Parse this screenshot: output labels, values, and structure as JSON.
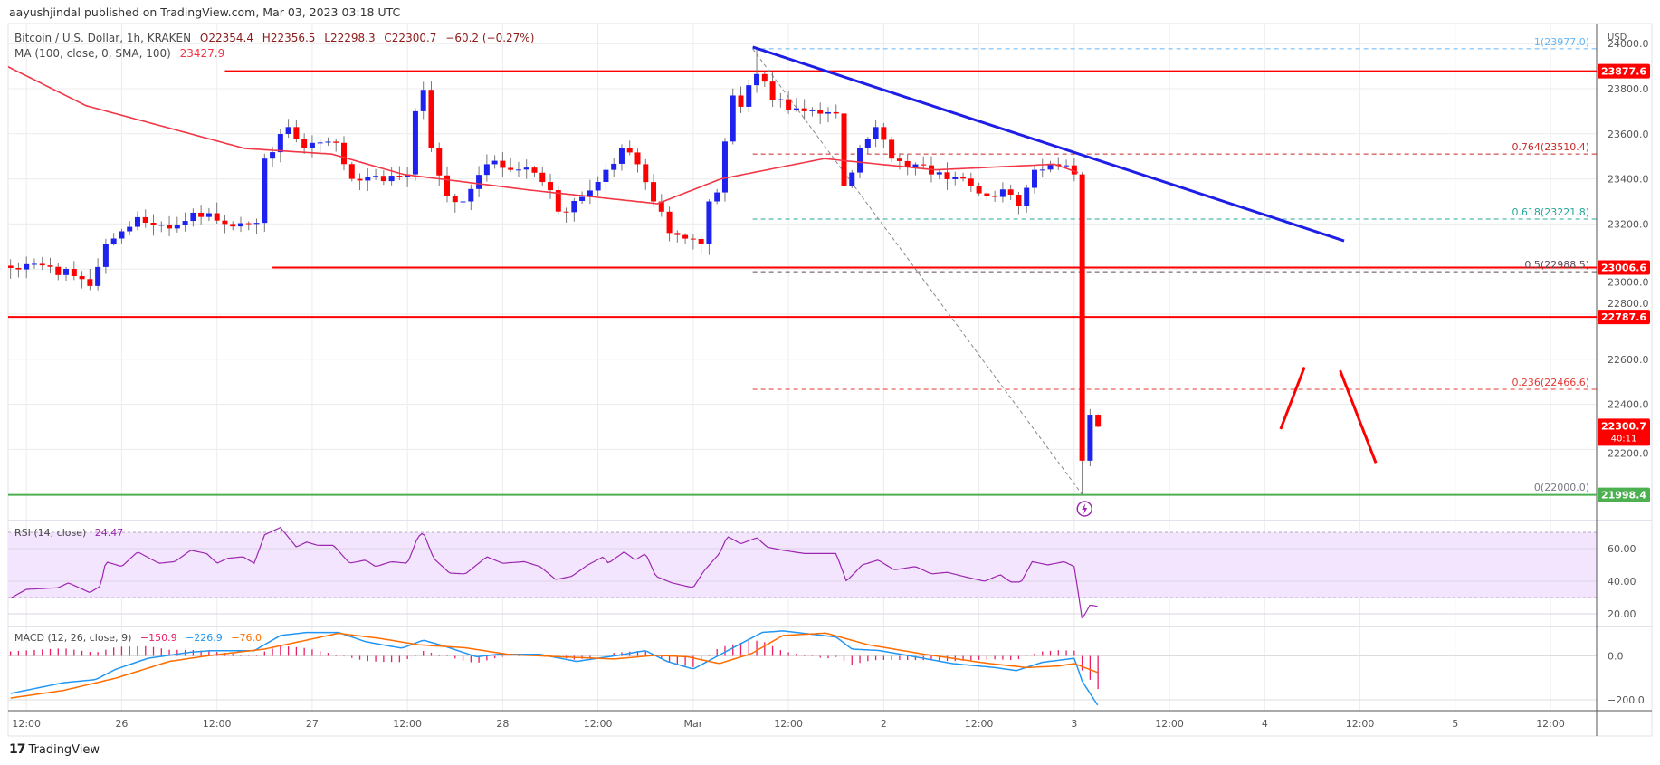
{
  "header": {
    "published": "aayushjindal published on TradingView.com, Mar 03, 2023 03:18 UTC"
  },
  "legend": {
    "symbol": "Bitcoin / U.S. Dollar, 1h, KRAKEN",
    "open": "O22354.4",
    "high": "H22356.5",
    "low": "L22298.3",
    "close": "C22300.7",
    "change": "−60.2 (−0.27%)",
    "ma_label": "MA (100, close, 0, SMA, 100)",
    "ma_value": "23427.9",
    "rsi_label": "RSI (14, close)",
    "rsi_value": "24.47",
    "macd_label": "MACD (12, 26, close, 9)",
    "macd_hist": "−150.9",
    "macd_line": "−226.9",
    "macd_signal": "−76.0"
  },
  "axis": {
    "currency": "USD",
    "price_ticks": [
      "24000.0",
      "23800.0",
      "23600.0",
      "23400.0",
      "23200.0",
      "23000.0",
      "22800.0",
      "22600.0",
      "22400.0",
      "22200.0"
    ],
    "price_tick_values": [
      24000,
      23800,
      23600,
      23400,
      23200,
      23000,
      22800,
      22600,
      22400,
      22200
    ],
    "rsi_ticks": [
      "60.00",
      "40.00",
      "20.00"
    ],
    "rsi_tick_values": [
      60,
      40,
      20
    ],
    "macd_ticks": [
      "0.0",
      "−200.0"
    ],
    "macd_tick_values": [
      0,
      -200
    ],
    "time_labels": [
      "12:00",
      "26",
      "12:00",
      "27",
      "12:00",
      "28",
      "12:00",
      "Mar",
      "12:00",
      "2",
      "12:00",
      "3",
      "12:00",
      "4",
      "12:00",
      "5",
      "12:00"
    ],
    "time_label_hours": [
      2,
      14,
      26,
      38,
      50,
      62,
      74,
      86,
      98,
      110,
      122,
      134,
      146,
      158,
      170,
      182,
      194
    ],
    "price_badges": [
      {
        "text": "23877.6",
        "value": 23877.6,
        "color": "#ff0000"
      },
      {
        "text": "23006.6",
        "value": 23006.6,
        "color": "#ff0000"
      },
      {
        "text": "22787.6",
        "value": 22787.6,
        "color": "#ff0000"
      },
      {
        "text": "22300.7",
        "sub": "40:11",
        "value": 22300.7,
        "color": "#ff0000"
      },
      {
        "text": "21998.4",
        "value": 21998.4,
        "color": "#4caf50"
      }
    ]
  },
  "chart_data": {
    "type": "candlestick",
    "title": "Bitcoin / U.S. Dollar, 1h, KRAKEN",
    "x_unit": "hours since Feb 25 10:00 UTC",
    "ylim": [
      21850,
      24050
    ],
    "close_anchors": [
      [
        0,
        23005
      ],
      [
        5,
        23010
      ],
      [
        10,
        22925
      ],
      [
        12,
        23113
      ],
      [
        16,
        23230
      ],
      [
        20,
        23180
      ],
      [
        23,
        23250
      ],
      [
        27,
        23200
      ],
      [
        31,
        23205
      ],
      [
        32,
        23490
      ],
      [
        35,
        23630
      ],
      [
        37,
        23535
      ],
      [
        41,
        23560
      ],
      [
        43,
        23400
      ],
      [
        47,
        23390
      ],
      [
        50,
        23420
      ],
      [
        51,
        23700
      ],
      [
        52,
        23795
      ],
      [
        53,
        23535
      ],
      [
        55,
        23325
      ],
      [
        57,
        23300
      ],
      [
        60,
        23465
      ],
      [
        63,
        23440
      ],
      [
        65,
        23450
      ],
      [
        68,
        23350
      ],
      [
        69,
        23255
      ],
      [
        72,
        23320
      ],
      [
        75,
        23440
      ],
      [
        77,
        23535
      ],
      [
        79,
        23465
      ],
      [
        81,
        23300
      ],
      [
        83,
        23160
      ],
      [
        85,
        23135
      ],
      [
        87,
        23110
      ],
      [
        88,
        23300
      ],
      [
        89,
        23340
      ],
      [
        91,
        23770
      ],
      [
        92,
        23720
      ],
      [
        94,
        23865
      ],
      [
        96,
        23750
      ],
      [
        100,
        23700
      ],
      [
        104,
        23690
      ],
      [
        105,
        23370
      ],
      [
        107,
        23535
      ],
      [
        109,
        23630
      ],
      [
        111,
        23490
      ],
      [
        115,
        23460
      ],
      [
        116,
        23420
      ],
      [
        119,
        23410
      ],
      [
        121,
        23370
      ],
      [
        123,
        23325
      ],
      [
        126,
        23330
      ],
      [
        127,
        23280
      ],
      [
        129,
        23440
      ],
      [
        131,
        23465
      ],
      [
        133,
        23460
      ],
      [
        134,
        23420
      ],
      [
        135,
        22150
      ],
      [
        136,
        22354
      ],
      [
        137,
        22300.7
      ]
    ],
    "extremes": {
      "high": {
        "hour": 94,
        "price": 23977
      },
      "low": {
        "hour": 135,
        "price": 22000
      }
    },
    "ma_anchors": [
      [
        0,
        23936
      ],
      [
        12,
        23725
      ],
      [
        32,
        23535
      ],
      [
        43,
        23510
      ],
      [
        52,
        23420
      ],
      [
        68,
        23350
      ],
      [
        84,
        23290
      ],
      [
        92,
        23400
      ],
      [
        105,
        23490
      ],
      [
        119,
        23440
      ],
      [
        134,
        23465
      ],
      [
        137,
        23428
      ]
    ],
    "levels": [
      {
        "name": "resistance-1",
        "value": 23877.6,
        "from_hour": 27,
        "color": "#ff0000"
      },
      {
        "name": "resistance-2",
        "value": 23006.6,
        "from_hour": 33,
        "color": "#ff0000"
      },
      {
        "name": "resistance-3",
        "value": 22787.6,
        "from_hour": -3,
        "color": "#ff0000"
      },
      {
        "name": "support",
        "value": 21998.4,
        "from_hour": -3,
        "color": "#4caf50"
      }
    ],
    "fib": [
      {
        "label": "1(23977.0)",
        "value": 23977.0,
        "color": "#64b5f6"
      },
      {
        "label": "0.764(23510.4)",
        "value": 23510.4,
        "color": "#c62828"
      },
      {
        "label": "0.618(23221.8)",
        "value": 23221.8,
        "color": "#26a69a"
      },
      {
        "label": "0.5(22988.5)",
        "value": 22988.5,
        "color": "#5d4a5a"
      },
      {
        "label": "0.236(22466.6)",
        "value": 22466.6,
        "color": "#e53935"
      },
      {
        "label": "0(22000.0)",
        "value": 22000.0,
        "color": "#787b86"
      }
    ],
    "fib_from_hour": 93.5,
    "trendline": {
      "from": [
        93.5,
        23985
      ],
      "to": [
        168,
        23125
      ],
      "color": "#1e1ee6"
    },
    "arrows": [
      {
        "from": [
          160,
          22290
        ],
        "to": [
          163,
          22565
        ],
        "color": "#ff0000"
      },
      {
        "from": [
          167.5,
          22550
        ],
        "to": [
          172,
          22140
        ],
        "color": "#ff0000"
      }
    ],
    "rsi_anchors": [
      [
        0,
        29.6
      ],
      [
        2,
        35
      ],
      [
        6,
        36
      ],
      [
        7.3,
        39
      ],
      [
        10,
        33
      ],
      [
        11.3,
        37
      ],
      [
        12,
        52
      ],
      [
        14,
        49
      ],
      [
        16,
        58
      ],
      [
        18.7,
        51
      ],
      [
        20.7,
        52
      ],
      [
        22.7,
        59
      ],
      [
        24.7,
        57
      ],
      [
        26,
        51
      ],
      [
        27.3,
        54
      ],
      [
        29.3,
        55
      ],
      [
        30.7,
        51
      ],
      [
        32,
        68.5
      ],
      [
        34,
        73
      ],
      [
        36,
        61
      ],
      [
        37.3,
        64
      ],
      [
        38.7,
        62
      ],
      [
        40.7,
        62
      ],
      [
        42.7,
        51
      ],
      [
        44.7,
        53
      ],
      [
        46,
        49
      ],
      [
        48,
        52
      ],
      [
        50,
        51
      ],
      [
        51.3,
        67
      ],
      [
        52,
        70
      ],
      [
        53.3,
        54
      ],
      [
        55.3,
        45
      ],
      [
        57.3,
        44.5
      ],
      [
        60,
        55
      ],
      [
        62,
        51
      ],
      [
        64.7,
        52
      ],
      [
        66.7,
        49
      ],
      [
        68.7,
        41
      ],
      [
        70.7,
        43
      ],
      [
        72.7,
        50
      ],
      [
        74.7,
        55
      ],
      [
        75.3,
        51
      ],
      [
        77.3,
        58
      ],
      [
        78.7,
        53
      ],
      [
        80,
        57
      ],
      [
        81.3,
        43
      ],
      [
        83.3,
        39
      ],
      [
        86,
        36
      ],
      [
        87.3,
        46
      ],
      [
        89.3,
        57
      ],
      [
        90.3,
        67.5
      ],
      [
        92,
        63
      ],
      [
        94,
        66.7
      ],
      [
        95.3,
        61
      ],
      [
        97.3,
        59
      ],
      [
        100,
        57
      ],
      [
        104,
        57
      ],
      [
        105.3,
        40
      ],
      [
        107.3,
        50
      ],
      [
        109.3,
        53
      ],
      [
        111.3,
        47
      ],
      [
        114,
        49
      ],
      [
        116,
        44.5
      ],
      [
        118,
        45.5
      ],
      [
        120,
        43
      ],
      [
        122.7,
        40
      ],
      [
        124.7,
        44
      ],
      [
        126,
        39.5
      ],
      [
        127.3,
        39.5
      ],
      [
        128.7,
        52
      ],
      [
        130.7,
        50
      ],
      [
        132.7,
        52
      ],
      [
        134,
        49
      ],
      [
        135,
        16.7
      ],
      [
        136,
        25.5
      ],
      [
        137,
        24.47
      ]
    ],
    "rsi_bands": [
      70,
      30
    ],
    "macd_anchors": [
      [
        0,
        -171
      ],
      [
        6.7,
        -122
      ],
      [
        10.7,
        -108
      ],
      [
        13.3,
        -60
      ],
      [
        17.3,
        -11
      ],
      [
        22.7,
        17
      ],
      [
        25.3,
        24
      ],
      [
        30.7,
        24
      ],
      [
        34,
        93
      ],
      [
        37.3,
        107
      ],
      [
        41.3,
        107
      ],
      [
        44.7,
        65
      ],
      [
        49.3,
        35
      ],
      [
        52,
        72
      ],
      [
        54.7,
        44
      ],
      [
        58.7,
        -4
      ],
      [
        61.3,
        7
      ],
      [
        66.7,
        7
      ],
      [
        71.3,
        -25
      ],
      [
        76,
        0
      ],
      [
        80,
        24
      ],
      [
        82.7,
        -25
      ],
      [
        86,
        -60
      ],
      [
        90.7,
        31
      ],
      [
        94.7,
        107
      ],
      [
        97.3,
        114
      ],
      [
        104,
        86
      ],
      [
        106,
        31
      ],
      [
        109.3,
        25
      ],
      [
        113.3,
        0
      ],
      [
        118.7,
        -35
      ],
      [
        124,
        -53
      ],
      [
        126.7,
        -67
      ],
      [
        130,
        -29
      ],
      [
        134,
        -11
      ],
      [
        135,
        -115
      ],
      [
        137,
        -226.9
      ]
    ],
    "signal_anchors": [
      [
        0,
        -192
      ],
      [
        6.7,
        -157
      ],
      [
        13.3,
        -101
      ],
      [
        20,
        -25
      ],
      [
        25.3,
        3
      ],
      [
        32,
        31
      ],
      [
        41.3,
        103
      ],
      [
        46.7,
        79
      ],
      [
        51.3,
        51
      ],
      [
        57.3,
        37
      ],
      [
        62.7,
        7
      ],
      [
        69.3,
        -4
      ],
      [
        76,
        -14
      ],
      [
        81.3,
        3
      ],
      [
        85.3,
        -4
      ],
      [
        89.3,
        -35
      ],
      [
        93.3,
        10
      ],
      [
        97.3,
        93
      ],
      [
        102.7,
        104
      ],
      [
        108,
        51
      ],
      [
        114.7,
        10
      ],
      [
        122.7,
        -32
      ],
      [
        128,
        -53
      ],
      [
        132,
        -46
      ],
      [
        134,
        -35
      ],
      [
        137,
        -76
      ]
    ],
    "colors": {
      "up": "#1e22ee",
      "down": "#ff0000",
      "ma": "#f23645",
      "rsi": "#9c27b0",
      "macd": "#2196f3",
      "signal": "#ff6d00",
      "hist": "#e91e63"
    }
  }
}
